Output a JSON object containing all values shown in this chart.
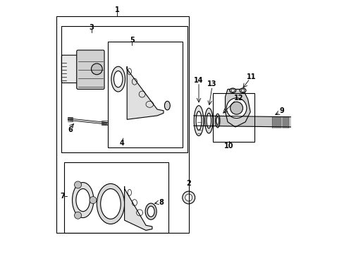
{
  "bg_color": "#ffffff",
  "line_color": "#000000",
  "part_color": "#555555",
  "label_color": "#000000",
  "figsize": [
    4.89,
    3.6
  ],
  "dpi": 100
}
